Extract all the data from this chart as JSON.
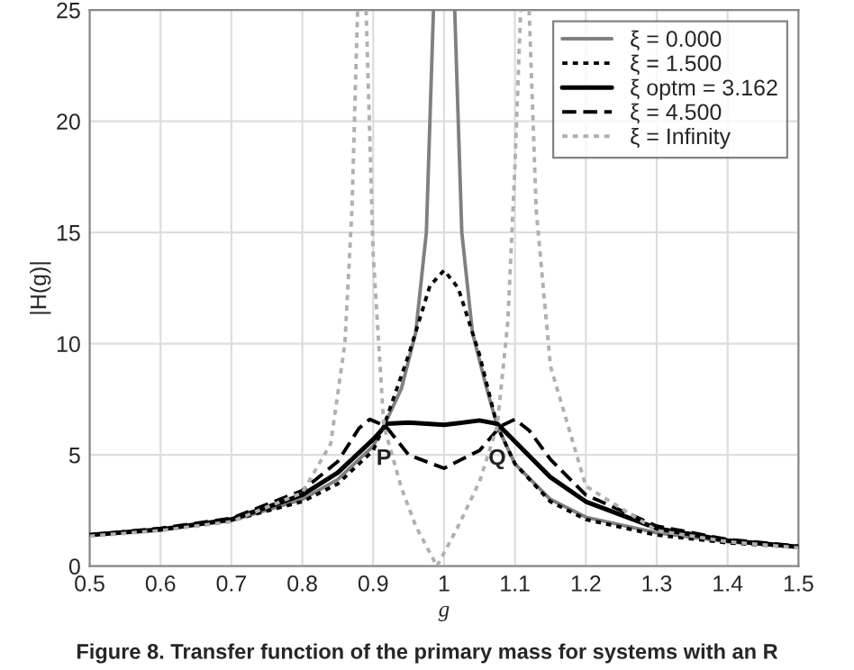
{
  "chart_data": {
    "type": "line",
    "xlabel": "g",
    "ylabel": "|H(g)|",
    "xlim": [
      0.5,
      1.5
    ],
    "xticks": [
      0.5,
      0.6,
      0.7,
      0.8,
      0.9,
      1,
      1.1,
      1.2,
      1.3,
      1.4,
      1.5
    ],
    "ylim": [
      0,
      25
    ],
    "yticks": [
      0,
      5,
      10,
      15,
      20,
      25
    ],
    "grid": true,
    "legend": "top right",
    "series": [
      {
        "name": "ξ = 0.000",
        "color": "#808080",
        "line_style": "solid",
        "x": [
          0.5,
          0.6,
          0.7,
          0.8,
          0.85,
          0.9,
          0.915,
          0.94,
          0.96,
          0.975,
          0.985,
          1.0,
          1.015,
          1.025,
          1.04,
          1.06,
          1.075,
          1.1,
          1.15,
          1.2,
          1.3,
          1.4,
          1.5
        ],
        "values": [
          1.4,
          1.65,
          2.05,
          3.0,
          3.9,
          5.4,
          6.3,
          8.0,
          10.5,
          15,
          25,
          null,
          25,
          15,
          10.5,
          8.0,
          6.3,
          4.6,
          3.0,
          2.2,
          1.5,
          1.1,
          0.85
        ]
      },
      {
        "name": "ξ = 1.500",
        "color": "#000000",
        "line_style": "dotted",
        "x": [
          0.5,
          0.6,
          0.7,
          0.8,
          0.85,
          0.9,
          0.915,
          0.95,
          0.98,
          1.0,
          1.02,
          1.05,
          1.075,
          1.1,
          1.15,
          1.2,
          1.3,
          1.4,
          1.5
        ],
        "values": [
          1.4,
          1.65,
          2.05,
          2.9,
          3.7,
          5.2,
          6.3,
          9.5,
          12.6,
          13.3,
          12.5,
          9.5,
          6.3,
          4.6,
          2.9,
          2.1,
          1.4,
          1.05,
          0.85
        ]
      },
      {
        "name": "ξ optm = 3.162",
        "color": "#000000",
        "line_style": "solid",
        "x": [
          0.5,
          0.6,
          0.7,
          0.8,
          0.85,
          0.9,
          0.92,
          0.95,
          1.0,
          1.05,
          1.075,
          1.1,
          1.15,
          1.2,
          1.3,
          1.4,
          1.5
        ],
        "values": [
          1.4,
          1.65,
          2.1,
          3.2,
          4.2,
          5.7,
          6.4,
          6.45,
          6.35,
          6.55,
          6.4,
          5.6,
          4.0,
          2.9,
          1.7,
          1.15,
          0.87
        ]
      },
      {
        "name": "ξ = 4.500",
        "color": "#000000",
        "line_style": "dashed",
        "x": [
          0.5,
          0.6,
          0.7,
          0.8,
          0.85,
          0.88,
          0.895,
          0.91,
          0.92,
          0.95,
          1.0,
          1.05,
          1.08,
          1.1,
          1.12,
          1.15,
          1.2,
          1.3,
          1.4,
          1.5
        ],
        "values": [
          1.4,
          1.7,
          2.15,
          3.4,
          4.7,
          6.2,
          6.6,
          6.4,
          6.2,
          5.0,
          4.4,
          5.2,
          6.3,
          6.6,
          6.1,
          4.8,
          3.2,
          1.8,
          1.2,
          0.9
        ]
      },
      {
        "name": "ξ = Infinity",
        "color": "#b0b0b0",
        "line_style": "dotted",
        "x": [
          0.5,
          0.6,
          0.7,
          0.8,
          0.84,
          0.86,
          0.87,
          0.878,
          0.884,
          0.89,
          0.9,
          0.915,
          0.94,
          0.96,
          0.99,
          1.02,
          1.05,
          1.075,
          1.09,
          1.1,
          1.108,
          1.114,
          1.12,
          1.13,
          1.15,
          1.2,
          1.3,
          1.4,
          1.5
        ],
        "values": [
          1.35,
          1.6,
          2.0,
          3.3,
          5.5,
          10,
          16,
          25,
          null,
          25,
          14,
          6.3,
          3.5,
          1.8,
          0,
          1.8,
          3.8,
          6.3,
          11,
          18,
          25,
          null,
          25,
          16,
          9,
          3.6,
          1.6,
          1.1,
          0.82
        ]
      }
    ],
    "annotations": [
      {
        "text": "P",
        "x": 0.915,
        "y": 6.3
      },
      {
        "text": "Q",
        "x": 1.075,
        "y": 6.3
      },
      "Figure 8. Transfer function of the primary mass for systems with an R"
    ]
  }
}
